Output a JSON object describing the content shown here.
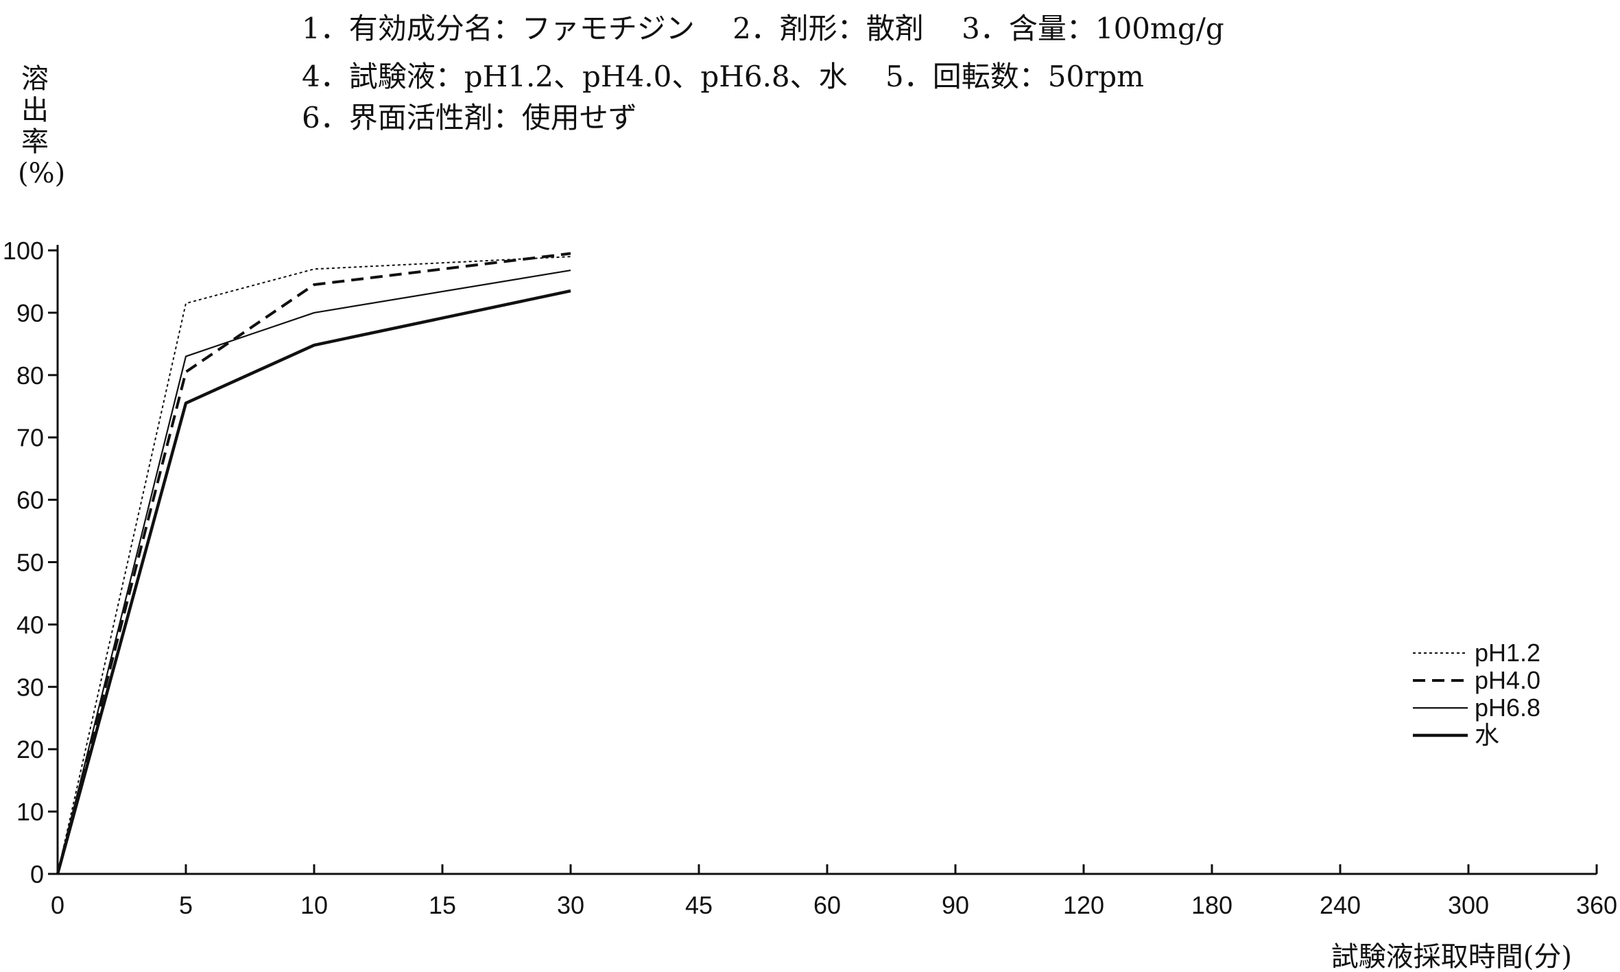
{
  "header": {
    "line1": "1．有効成分名：ファモチジン　 2．剤形：散剤　 3．含量：100mg/g",
    "line2": "4．試験液：pH1.2、pH4.0、pH6.8、水　 5．回転数：50rpm",
    "line3": "6．界面活性剤：使用せず"
  },
  "chart_data": {
    "type": "line",
    "title": "",
    "ylabel": "溶出率(%)",
    "xlabel": "試験液採取時間(分)",
    "categories": [
      "0",
      "5",
      "10",
      "15",
      "30",
      "45",
      "60",
      "90",
      "120",
      "180",
      "240",
      "300",
      "360"
    ],
    "x": [
      0,
      5,
      10,
      30
    ],
    "ylim": [
      0,
      100
    ],
    "yticks": [
      "0",
      "10",
      "20",
      "30",
      "40",
      "50",
      "60",
      "70",
      "80",
      "90",
      "100"
    ],
    "legend_position": "right",
    "grid": false,
    "series": [
      {
        "name": "pH1.2",
        "style": "dotted",
        "values": [
          0,
          91.5,
          97,
          99
        ]
      },
      {
        "name": "pH4.0",
        "style": "dashed",
        "values": [
          0,
          80.5,
          94.5,
          99.5
        ]
      },
      {
        "name": "pH6.8",
        "style": "thin-solid",
        "values": [
          0,
          83,
          90,
          96.8
        ]
      },
      {
        "name": "水",
        "style": "thick-solid",
        "values": [
          0,
          75.5,
          84.8,
          93.5
        ]
      }
    ]
  }
}
